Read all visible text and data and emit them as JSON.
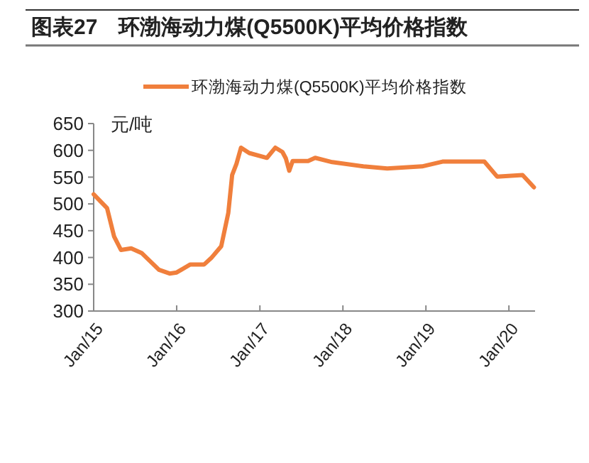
{
  "chart_data": {
    "type": "line",
    "title": "图表27　环渤海动力煤(Q5500K)平均价格指数",
    "ylabel": "元/吨",
    "x": [
      "2015-01-01",
      "2015-03-01",
      "2015-04-01",
      "2015-05-01",
      "2015-06-15",
      "2015-08-01",
      "2015-10-15",
      "2015-12-01",
      "2016-01-01",
      "2016-03-01",
      "2016-05-01",
      "2016-06-01",
      "2016-07-15",
      "2016-08-15",
      "2016-09-01",
      "2016-09-20",
      "2016-10-10",
      "2016-11-15",
      "2017-02-01",
      "2017-03-10",
      "2017-04-10",
      "2017-04-25",
      "2017-05-10",
      "2017-05-25",
      "2017-08-01",
      "2017-09-01",
      "2017-11-15",
      "2018-04-01",
      "2018-07-15",
      "2018-12-15",
      "2019-03-15",
      "2019-09-15",
      "2019-11-10",
      "2020-03-01",
      "2020-04-20"
    ],
    "series": [
      {
        "name": "环渤海动力煤(Q5500K)平均价格指数",
        "color": "#f07f3c",
        "values": [
          518,
          492,
          439,
          414,
          417,
          408,
          377,
          370,
          372,
          387,
          387,
          399,
          421,
          483,
          554,
          575,
          605,
          595,
          586,
          605,
          597,
          585,
          562,
          580,
          580,
          586,
          578,
          570,
          566,
          570,
          579,
          579,
          551,
          554,
          531
        ]
      }
    ],
    "xlim": [
      "2015-01-01",
      "2020-04-25"
    ],
    "xticks": [
      {
        "value": "2015-01-01",
        "label": "Jan/15"
      },
      {
        "value": "2016-01-01",
        "label": "Jan/16"
      },
      {
        "value": "2017-01-01",
        "label": "Jan/17"
      },
      {
        "value": "2018-01-01",
        "label": "Jan/18"
      },
      {
        "value": "2019-01-01",
        "label": "Jan/19"
      },
      {
        "value": "2020-01-01",
        "label": "Jan/20"
      }
    ],
    "ylim": [
      300,
      650
    ],
    "yticks": [
      300,
      350,
      400,
      450,
      500,
      550,
      600,
      650
    ],
    "grid": false,
    "legend": "top",
    "marker": "none",
    "line_style": "solid"
  }
}
